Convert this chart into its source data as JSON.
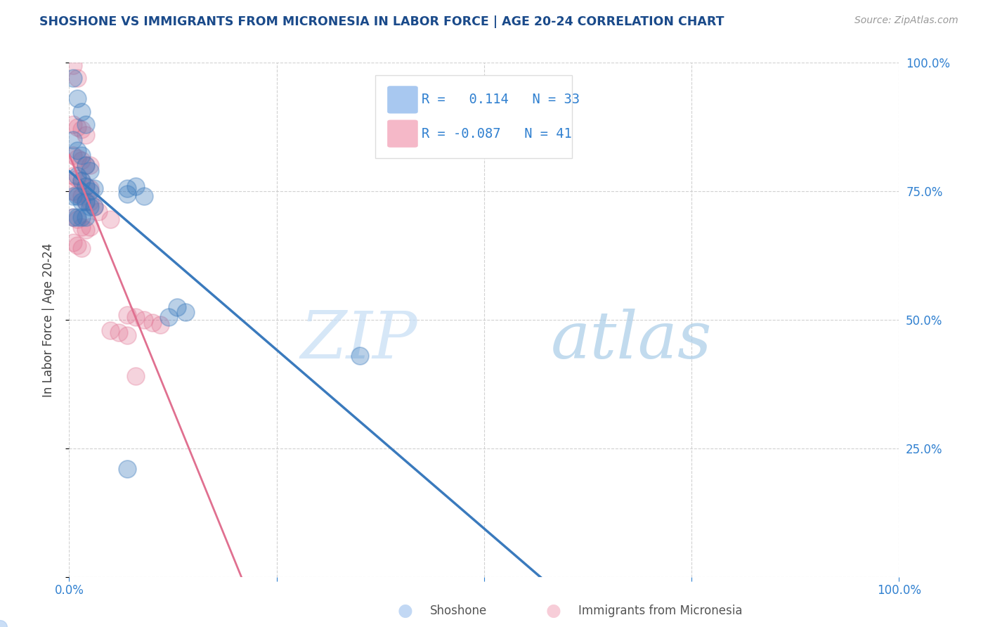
{
  "title": "SHOSHONE VS IMMIGRANTS FROM MICRONESIA IN LABOR FORCE | AGE 20-24 CORRELATION CHART",
  "source_text": "Source: ZipAtlas.com",
  "ylabel": "In Labor Force | Age 20-24",
  "xlim": [
    0,
    1.0
  ],
  "ylim": [
    0,
    1.0
  ],
  "grid_color": "#cccccc",
  "watermark_zip": "ZIP",
  "watermark_atlas": "atlas",
  "legend_entries": [
    {
      "color": "#a8c8f0",
      "R": "0.114",
      "N": "33",
      "label": "Shoshone"
    },
    {
      "color": "#f5b8c8",
      "R": "-0.087",
      "N": "41",
      "label": "Immigrants from Micronesia"
    }
  ],
  "shoshone_scatter": [
    [
      0.005,
      0.97
    ],
    [
      0.01,
      0.93
    ],
    [
      0.015,
      0.905
    ],
    [
      0.02,
      0.88
    ],
    [
      0.005,
      0.85
    ],
    [
      0.01,
      0.83
    ],
    [
      0.015,
      0.82
    ],
    [
      0.02,
      0.8
    ],
    [
      0.025,
      0.79
    ],
    [
      0.01,
      0.78
    ],
    [
      0.015,
      0.77
    ],
    [
      0.02,
      0.76
    ],
    [
      0.025,
      0.75
    ],
    [
      0.03,
      0.755
    ],
    [
      0.005,
      0.74
    ],
    [
      0.01,
      0.74
    ],
    [
      0.015,
      0.73
    ],
    [
      0.02,
      0.73
    ],
    [
      0.025,
      0.72
    ],
    [
      0.03,
      0.72
    ],
    [
      0.005,
      0.7
    ],
    [
      0.01,
      0.7
    ],
    [
      0.015,
      0.7
    ],
    [
      0.02,
      0.7
    ],
    [
      0.07,
      0.755
    ],
    [
      0.07,
      0.745
    ],
    [
      0.08,
      0.76
    ],
    [
      0.09,
      0.74
    ],
    [
      0.13,
      0.525
    ],
    [
      0.14,
      0.515
    ],
    [
      0.12,
      0.505
    ],
    [
      0.07,
      0.21
    ],
    [
      0.35,
      0.43
    ]
  ],
  "micronesia_scatter": [
    [
      0.005,
      0.995
    ],
    [
      0.01,
      0.97
    ],
    [
      0.005,
      0.88
    ],
    [
      0.01,
      0.875
    ],
    [
      0.015,
      0.87
    ],
    [
      0.02,
      0.86
    ],
    [
      0.005,
      0.82
    ],
    [
      0.01,
      0.815
    ],
    [
      0.015,
      0.81
    ],
    [
      0.02,
      0.8
    ],
    [
      0.025,
      0.8
    ],
    [
      0.005,
      0.78
    ],
    [
      0.01,
      0.775
    ],
    [
      0.015,
      0.77
    ],
    [
      0.02,
      0.76
    ],
    [
      0.025,
      0.755
    ],
    [
      0.005,
      0.75
    ],
    [
      0.01,
      0.745
    ],
    [
      0.015,
      0.74
    ],
    [
      0.02,
      0.73
    ],
    [
      0.025,
      0.73
    ],
    [
      0.03,
      0.72
    ],
    [
      0.035,
      0.71
    ],
    [
      0.005,
      0.7
    ],
    [
      0.01,
      0.695
    ],
    [
      0.015,
      0.68
    ],
    [
      0.02,
      0.675
    ],
    [
      0.025,
      0.68
    ],
    [
      0.05,
      0.695
    ],
    [
      0.005,
      0.65
    ],
    [
      0.01,
      0.645
    ],
    [
      0.015,
      0.64
    ],
    [
      0.07,
      0.51
    ],
    [
      0.08,
      0.505
    ],
    [
      0.09,
      0.5
    ],
    [
      0.1,
      0.495
    ],
    [
      0.11,
      0.49
    ],
    [
      0.05,
      0.48
    ],
    [
      0.06,
      0.475
    ],
    [
      0.07,
      0.47
    ],
    [
      0.08,
      0.39
    ]
  ],
  "shoshone_line_color": "#3a7abd",
  "micronesia_line_color": "#e07090",
  "title_color": "#1a4a8a",
  "axis_label_color": "#404040",
  "right_tick_color": "#3080d0",
  "bottom_tick_color": "#3080d0",
  "background_color": "#ffffff"
}
